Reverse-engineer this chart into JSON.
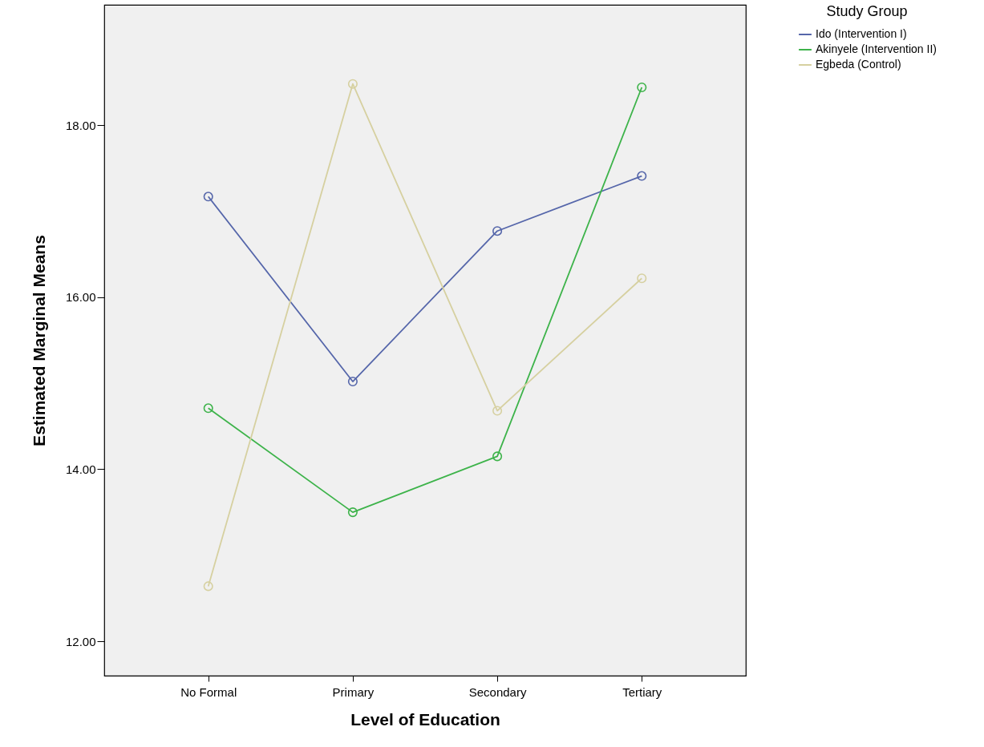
{
  "chart_data": {
    "type": "line",
    "xlabel": "Level of Education",
    "ylabel": "Estimated Marginal Means",
    "legend_title": "Study Group",
    "categories": [
      "No Formal",
      "Primary",
      "Secondary",
      "Tertiary"
    ],
    "series": [
      {
        "name": "Ido (Intervention I)",
        "color": "#5566aa",
        "values": [
          17.17,
          15.02,
          16.77,
          17.41
        ]
      },
      {
        "name": "Akinyele (Intervention II)",
        "color": "#3db34a",
        "values": [
          14.71,
          13.5,
          14.15,
          18.44
        ]
      },
      {
        "name": "Egbeda (Control)",
        "color": "#d6d0a0",
        "values": [
          12.64,
          18.48,
          14.68,
          16.22
        ]
      }
    ],
    "ylim": [
      11.6,
      19.4
    ],
    "yticks": [
      {
        "value": 12,
        "label": "12.00"
      },
      {
        "value": 14,
        "label": "14.00"
      },
      {
        "value": 16,
        "label": "16.00"
      },
      {
        "value": 18,
        "label": "18.00"
      }
    ],
    "grid": false,
    "legend": "top right",
    "marker": "circle",
    "line_style": "solid"
  }
}
